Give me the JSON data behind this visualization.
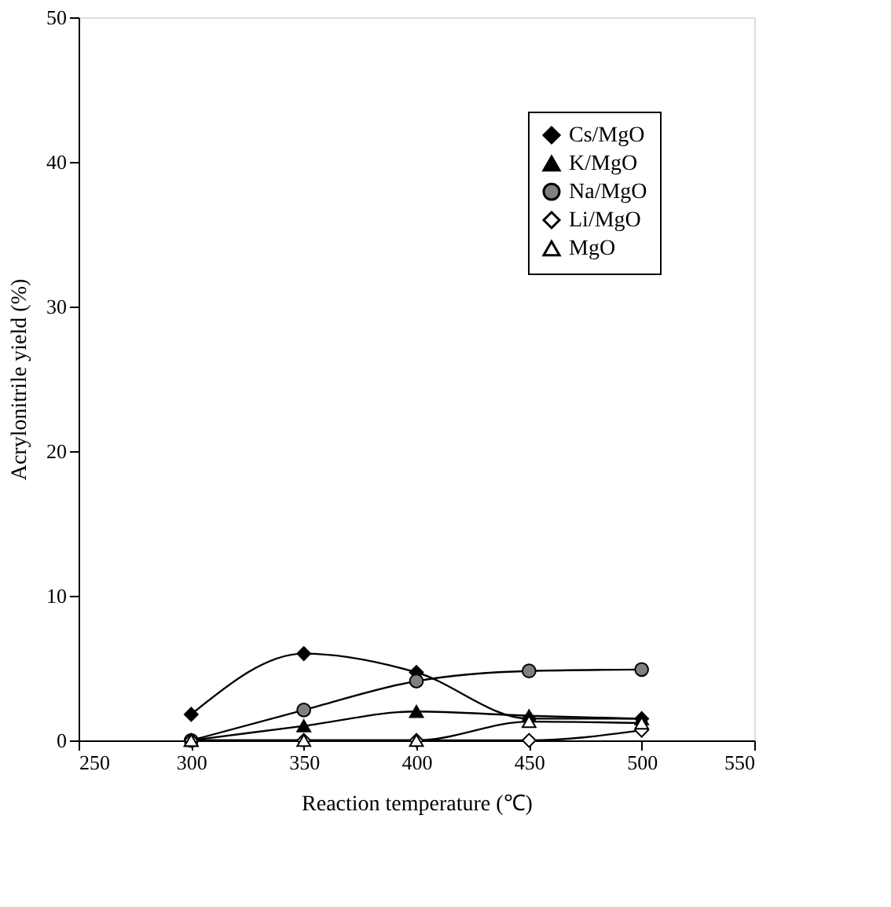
{
  "chart_data": {
    "type": "line",
    "xlabel": "Reaction temperature (℃)",
    "ylabel": "Acrylonitrile yield (%)",
    "x": [
      300,
      350,
      400,
      450,
      500
    ],
    "xlim": [
      250,
      550
    ],
    "xticks": [
      250,
      300,
      350,
      400,
      450,
      500,
      550
    ],
    "ylim": [
      0,
      50
    ],
    "yticks": [
      0,
      10,
      20,
      30,
      40,
      50
    ],
    "grid": false,
    "legend": "top right",
    "line_style": "solid",
    "series": [
      {
        "name": "Cs/MgO",
        "color": "#000000",
        "marker": "diamond",
        "values": [
          1.8,
          6.0,
          4.7,
          1.5,
          1.5
        ]
      },
      {
        "name": "K/MgO",
        "color": "#000000",
        "marker": "triangle",
        "values": [
          0,
          1.0,
          2.0,
          1.7,
          1.5
        ]
      },
      {
        "name": "Na/MgO",
        "color": "#808080",
        "marker": "circle",
        "values": [
          0,
          2.1,
          4.1,
          4.8,
          4.9
        ]
      },
      {
        "name": "Li/MgO",
        "color": "#ffffff",
        "marker": "diamond",
        "values": [
          0,
          0,
          0,
          0,
          0.7
        ]
      },
      {
        "name": "MgO",
        "color": "#ffffff",
        "marker": "triangle",
        "values": [
          0,
          0,
          0,
          1.3,
          1.2
        ]
      }
    ]
  }
}
